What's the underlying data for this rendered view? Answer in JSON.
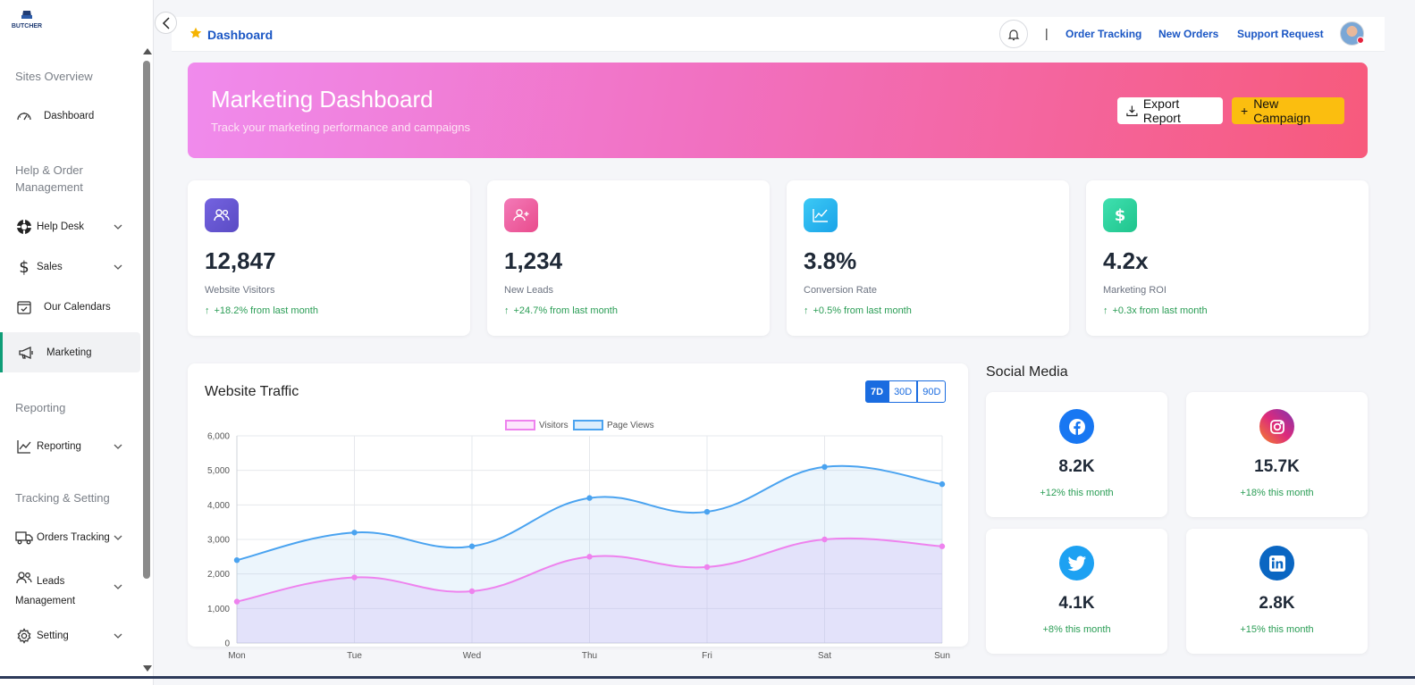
{
  "brand": {
    "logo_text": "BUTCHER"
  },
  "sidebar": {
    "sections": {
      "sites_overview": "Sites Overview",
      "help_order": "Help & Order Management",
      "reporting": "Reporting",
      "tracking_setting": "Tracking & Setting"
    },
    "items": [
      {
        "label": "Dashboard",
        "icon": "speedometer-icon"
      },
      {
        "label": "Help Desk",
        "icon": "lifebuoy-icon",
        "expandable": true
      },
      {
        "label": "Sales",
        "icon": "dollar-icon",
        "expandable": true
      },
      {
        "label": "Our Calendars",
        "icon": "calendar-icon"
      },
      {
        "label": "Marketing",
        "icon": "megaphone-icon",
        "active": true
      },
      {
        "label": "Reporting",
        "icon": "line-chart-icon",
        "expandable": true
      },
      {
        "label": "Orders Tracking",
        "icon": "truck-icon",
        "expandable": true
      },
      {
        "label": "Leads Management",
        "icon": "users-icon",
        "expandable": true
      },
      {
        "label": "Setting",
        "icon": "gear-icon",
        "expandable": true
      }
    ]
  },
  "topbar": {
    "breadcrumb": "Dashboard",
    "separator": "|",
    "links": [
      "Order Tracking",
      "New Orders",
      "Support Request"
    ]
  },
  "hero": {
    "title": "Marketing Dashboard",
    "subtitle": "Track your marketing performance and campaigns",
    "export_label": "Export Report",
    "new_label": "New Campaign"
  },
  "stats": [
    {
      "value": "12,847",
      "label": "Website Visitors",
      "change": "+18.2% from last month",
      "color": "#6b5bd6",
      "icon": "users-icon"
    },
    {
      "value": "1,234",
      "label": "New Leads",
      "change": "+24.7% from last month",
      "color": "#ee5fa0",
      "icon": "user-plus-icon"
    },
    {
      "value": "3.8%",
      "label": "Conversion Rate",
      "change": "+0.5% from last month",
      "color": "#22b7f0",
      "icon": "line-chart-icon"
    },
    {
      "value": "4.2x",
      "label": "Marketing ROI",
      "change": "+0.3x from last month",
      "color": "#2ed6a0",
      "icon": "dollar-icon"
    }
  ],
  "traffic": {
    "title": "Website Traffic",
    "ranges": [
      "7D",
      "30D",
      "90D"
    ],
    "selected_range": "7D"
  },
  "chart_data": {
    "type": "line",
    "categories": [
      "Mon",
      "Tue",
      "Wed",
      "Thu",
      "Fri",
      "Sat",
      "Sun"
    ],
    "series": [
      {
        "name": "Visitors",
        "values": [
          1200,
          1900,
          1500,
          2500,
          2200,
          3000,
          2800
        ],
        "color": "#ee82ee"
      },
      {
        "name": "Page Views",
        "values": [
          2400,
          3200,
          2800,
          4200,
          3800,
          5100,
          4600
        ],
        "color": "#4aa3f0"
      }
    ],
    "yticks": [
      "0",
      "1,000",
      "2,000",
      "3,000",
      "4,000",
      "5,000",
      "6,000"
    ],
    "ylim": [
      0,
      6000
    ],
    "grid": true,
    "legend": "top"
  },
  "social": {
    "title": "Social Media",
    "items": [
      {
        "network": "facebook",
        "value": "8.2K",
        "change": "+12% this month",
        "color": "#1877f2"
      },
      {
        "network": "instagram",
        "value": "15.7K",
        "change": "+18% this month",
        "color": "#dd2a7b"
      },
      {
        "network": "twitter",
        "value": "4.1K",
        "change": "+8% this month",
        "color": "#1da1f2"
      },
      {
        "network": "linkedin",
        "value": "2.8K",
        "change": "+15% this month",
        "color": "#0a66c2"
      }
    ]
  }
}
